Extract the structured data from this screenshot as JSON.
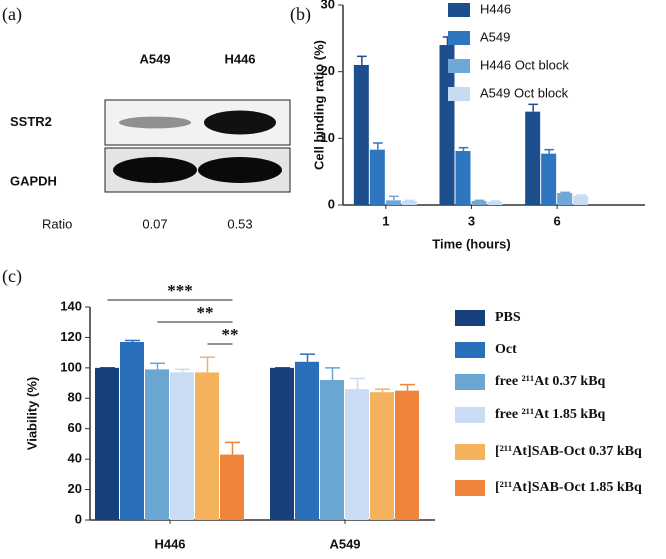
{
  "chart_data": [
    {
      "type": "blot",
      "panel_label": "(a)",
      "categories": [
        "A549",
        "H446"
      ],
      "rows": [
        "SSTR2",
        "GAPDH"
      ],
      "ratio_label": "Ratio",
      "values": [
        0.07,
        0.53
      ]
    },
    {
      "type": "bar",
      "panel_label": "(b)",
      "ylabel": "Cell binding ratio (%)",
      "xlabel": "Time (hours)",
      "categories": [
        "1",
        "3",
        "6"
      ],
      "series": [
        {
          "name": "H446",
          "color": "#1d4f8e",
          "values": [
            21,
            24,
            14
          ],
          "errors": [
            1.3,
            1.2,
            1.1
          ]
        },
        {
          "name": "A549",
          "color": "#2f76c0",
          "values": [
            8.3,
            8.1,
            7.7
          ],
          "errors": [
            1.0,
            0.5,
            0.6
          ]
        },
        {
          "name": "H446 Oct block",
          "color": "#6fa8d6",
          "values": [
            0.7,
            0.6,
            1.8
          ],
          "errors": [
            0.6,
            0.1,
            0.1
          ]
        },
        {
          "name": "A549 Oct block",
          "color": "#c6dcf2",
          "values": [
            0.6,
            0.5,
            1.4
          ],
          "errors": [
            0.1,
            0.1,
            0.1
          ]
        }
      ],
      "ylim": [
        0,
        30
      ],
      "yticks": [
        0,
        10,
        20,
        30
      ],
      "legend": "upper right"
    },
    {
      "type": "bar",
      "panel_label": "(c)",
      "ylabel": "Viability (%)",
      "categories": [
        "H446",
        "A549"
      ],
      "series": [
        {
          "name": "PBS",
          "color": "#173f7b",
          "values": [
            100,
            100
          ],
          "errors": [
            0,
            0
          ]
        },
        {
          "name": "Oct",
          "color": "#2a6fba",
          "values": [
            117,
            104
          ],
          "errors": [
            1,
            5
          ]
        },
        {
          "name": "free ²¹¹At 0.37 kBq",
          "color": "#6aa6d2",
          "values": [
            99,
            92
          ],
          "errors": [
            4,
            8
          ]
        },
        {
          "name": "free ²¹¹At 1.85 kBq",
          "color": "#c9dcf3",
          "values": [
            97,
            86
          ],
          "errors": [
            2,
            7
          ]
        },
        {
          "name": "[²¹¹At]SAB-Oct 0.37 kBq",
          "color": "#f5b25c",
          "values": [
            97,
            84
          ],
          "errors": [
            10,
            2
          ]
        },
        {
          "name": "[²¹¹At]SAB-Oct 1.85 kBq",
          "color": "#f0843a",
          "values": [
            43,
            85
          ],
          "errors": [
            8,
            4
          ]
        }
      ],
      "ylim": [
        0,
        140
      ],
      "yticks": [
        0,
        20,
        40,
        60,
        80,
        100,
        120,
        140
      ],
      "legend": "right",
      "annotations": [
        "***",
        "**",
        "**"
      ]
    }
  ]
}
